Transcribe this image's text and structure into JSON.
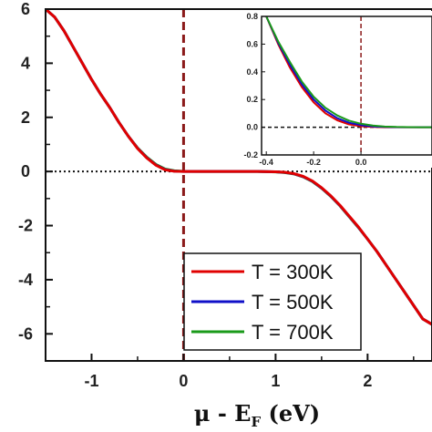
{
  "chart_data": [
    {
      "type": "line",
      "xlabel": {
        "prefix": "μ - E",
        "sub": "F",
        "suffix": " (eV)"
      },
      "ylabel": "",
      "xlim": [
        -1.5,
        2.7
      ],
      "ylim": [
        -7,
        6
      ],
      "x_ticks": [
        -1,
        0,
        1,
        2
      ],
      "y_ticks": [
        6,
        4,
        2,
        0,
        -2,
        -4,
        -6
      ],
      "x_tick_labels": [
        "-1",
        "0",
        "1",
        "2"
      ],
      "y_tick_labels": [
        "6",
        "4",
        "2",
        "0",
        "-2",
        "-4",
        "-6"
      ],
      "reference_lines": {
        "horizontal_zero": "dotted",
        "vertical_zero": "dashed"
      },
      "legend": {
        "placement": "bottom-right",
        "entries": [
          "T = 300K",
          "T = 500K",
          "T = 700K"
        ]
      },
      "series": [
        {
          "name": "T = 300K",
          "color": "#e00000",
          "x": [
            -1.5,
            -1.4,
            -1.3,
            -1.2,
            -1.1,
            -1.0,
            -0.9,
            -0.8,
            -0.7,
            -0.6,
            -0.5,
            -0.4,
            -0.3,
            -0.2,
            -0.1,
            0.0,
            0.2,
            0.4,
            0.6,
            0.8,
            1.0,
            1.1,
            1.2,
            1.3,
            1.4,
            1.5,
            1.6,
            1.7,
            1.8,
            1.9,
            2.0,
            2.1,
            2.2,
            2.3,
            2.4,
            2.5,
            2.6,
            2.7
          ],
          "y": [
            6.0,
            5.7,
            5.2,
            4.6,
            4.0,
            3.4,
            2.85,
            2.35,
            1.8,
            1.3,
            0.85,
            0.5,
            0.23,
            0.06,
            0.01,
            0.0,
            0.0,
            0.0,
            0.0,
            0.0,
            -0.01,
            -0.03,
            -0.08,
            -0.18,
            -0.35,
            -0.6,
            -0.9,
            -1.25,
            -1.65,
            -2.05,
            -2.5,
            -2.95,
            -3.45,
            -3.95,
            -4.45,
            -4.95,
            -5.45,
            -5.65
          ]
        },
        {
          "name": "T = 500K",
          "color": "#1010c8",
          "x": [
            -1.5,
            -1.4,
            -1.3,
            -1.2,
            -1.1,
            -1.0,
            -0.9,
            -0.8,
            -0.7,
            -0.6,
            -0.5,
            -0.4,
            -0.3,
            -0.2,
            -0.1,
            0.0,
            0.2,
            0.4,
            0.6,
            0.8,
            1.0,
            1.1,
            1.2,
            1.3,
            1.4,
            1.5,
            1.6,
            1.7,
            1.8,
            1.9,
            2.0,
            2.1,
            2.2,
            2.3,
            2.4,
            2.5,
            2.6,
            2.7
          ],
          "y": [
            6.0,
            5.7,
            5.2,
            4.6,
            4.0,
            3.4,
            2.85,
            2.35,
            1.8,
            1.3,
            0.86,
            0.51,
            0.24,
            0.07,
            0.015,
            0.0,
            0.0,
            0.0,
            0.0,
            0.0,
            -0.012,
            -0.035,
            -0.085,
            -0.19,
            -0.36,
            -0.61,
            -0.91,
            -1.26,
            -1.66,
            -2.06,
            -2.5,
            -2.95,
            -3.45,
            -3.95,
            -4.45,
            -4.95,
            -5.45,
            -5.65
          ]
        },
        {
          "name": "T = 700K",
          "color": "#1a9a1a",
          "x": [
            -1.5,
            -1.4,
            -1.3,
            -1.2,
            -1.1,
            -1.0,
            -0.9,
            -0.8,
            -0.7,
            -0.6,
            -0.5,
            -0.4,
            -0.3,
            -0.2,
            -0.1,
            0.0,
            0.2,
            0.4,
            0.6,
            0.8,
            1.0,
            1.1,
            1.2,
            1.3,
            1.4,
            1.5,
            1.6,
            1.7,
            1.8,
            1.9,
            2.0,
            2.1,
            2.2,
            2.3,
            2.4,
            2.5,
            2.6,
            2.7
          ],
          "y": [
            6.0,
            5.7,
            5.2,
            4.6,
            4.0,
            3.4,
            2.85,
            2.35,
            1.8,
            1.3,
            0.87,
            0.53,
            0.26,
            0.09,
            0.025,
            0.005,
            0.0,
            0.0,
            0.0,
            0.0,
            -0.015,
            -0.04,
            -0.09,
            -0.2,
            -0.37,
            -0.62,
            -0.92,
            -1.27,
            -1.67,
            -2.07,
            -2.5,
            -2.95,
            -3.45,
            -3.95,
            -4.45,
            -4.95,
            -5.45,
            -5.65
          ]
        }
      ]
    },
    {
      "type": "line",
      "xlabel": "",
      "ylabel": "",
      "xlim": [
        -0.42,
        0.3
      ],
      "ylim": [
        -0.2,
        0.8
      ],
      "x_ticks": [
        -0.4,
        -0.2,
        0.0
      ],
      "y_ticks": [
        0.8,
        0.6,
        0.4,
        0.2,
        0.0,
        -0.2
      ],
      "x_tick_labels": [
        "-0.4",
        "-0.2",
        "0.0"
      ],
      "y_tick_labels": [
        "0.8",
        "0.6",
        "0.4",
        "0.2",
        "0.0",
        "-0.2"
      ],
      "reference_lines": {
        "horizontal_zero": "dashed",
        "vertical_zero": "dashed"
      },
      "series": [
        {
          "name": "T = 300K",
          "color": "#e00000",
          "x": [
            -0.4,
            -0.35,
            -0.3,
            -0.25,
            -0.2,
            -0.15,
            -0.1,
            -0.05,
            0.0,
            0.05,
            0.1,
            0.15,
            0.2,
            0.25,
            0.3
          ],
          "y": [
            0.8,
            0.6,
            0.43,
            0.29,
            0.18,
            0.1,
            0.05,
            0.02,
            0.007,
            0.002,
            0.0,
            0.0,
            0.0,
            0.0,
            0.0
          ]
        },
        {
          "name": "T = 500K",
          "color": "#1010c8",
          "x": [
            -0.4,
            -0.35,
            -0.3,
            -0.25,
            -0.2,
            -0.15,
            -0.1,
            -0.05,
            0.0,
            0.05,
            0.1,
            0.15,
            0.2,
            0.25,
            0.3
          ],
          "y": [
            0.8,
            0.61,
            0.45,
            0.31,
            0.2,
            0.12,
            0.065,
            0.032,
            0.015,
            0.006,
            0.002,
            0.001,
            0.0,
            0.0,
            0.0
          ]
        },
        {
          "name": "T = 700K",
          "color": "#1a9a1a",
          "x": [
            -0.4,
            -0.35,
            -0.3,
            -0.25,
            -0.2,
            -0.15,
            -0.1,
            -0.05,
            0.0,
            0.05,
            0.1,
            0.15,
            0.2,
            0.25,
            0.3
          ],
          "y": [
            0.8,
            0.62,
            0.47,
            0.33,
            0.22,
            0.14,
            0.085,
            0.047,
            0.025,
            0.012,
            0.005,
            0.002,
            0.001,
            0.0,
            0.0
          ]
        }
      ]
    }
  ]
}
